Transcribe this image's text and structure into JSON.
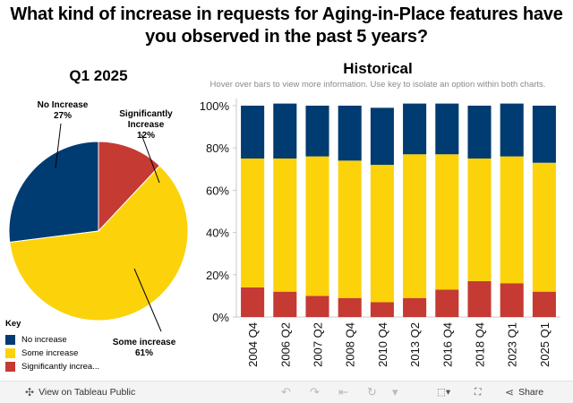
{
  "title": "What kind of increase in requests for Aging-in-Place features have you observed in the past 5 years?",
  "pie": {
    "title": "Q1 2025",
    "labels": {
      "no_increase": {
        "name": "No Increase",
        "pct": "27%"
      },
      "significantly": {
        "name": "Significantly Increase",
        "pct": "12%"
      },
      "some": {
        "name": "Some increase",
        "pct": "61%"
      }
    }
  },
  "historical": {
    "title": "Historical",
    "subtitle": "Hover over bars to view more information. Use key to isolate an option within both charts."
  },
  "key": {
    "title": "Key",
    "items": [
      "No increase",
      "Some increase",
      "Significantly increa..."
    ]
  },
  "colors": {
    "no_increase": "#003b71",
    "some": "#fcd20b",
    "significantly": "#c53a33"
  },
  "toolbar": {
    "view_label": "View on Tableau Public",
    "share_label": "Share",
    "view_icon": "tableau-logo-icon",
    "share_icon": "share-icon"
  },
  "chart_data": [
    {
      "type": "pie",
      "title": "Q1 2025",
      "categories": [
        "No Increase",
        "Significantly Increase",
        "Some increase"
      ],
      "values": [
        27,
        12,
        61
      ]
    },
    {
      "type": "bar",
      "stacked": true,
      "title": "Historical",
      "categories": [
        "2004 Q4",
        "2006 Q2",
        "2007 Q2",
        "2008 Q4",
        "2010 Q4",
        "2013 Q2",
        "2016 Q4",
        "2018 Q4",
        "2023 Q1",
        "2025 Q1"
      ],
      "series": [
        {
          "name": "Significantly increase",
          "values": [
            14,
            12,
            10,
            9,
            7,
            9,
            13,
            17,
            16,
            12
          ]
        },
        {
          "name": "Some increase",
          "values": [
            61,
            63,
            66,
            65,
            65,
            68,
            64,
            58,
            60,
            61
          ]
        },
        {
          "name": "No increase",
          "values": [
            25,
            26,
            24,
            26,
            27,
            24,
            24,
            25,
            25,
            27
          ]
        }
      ],
      "yticks": [
        "0%",
        "20%",
        "40%",
        "60%",
        "80%",
        "100%"
      ],
      "ylim": [
        0,
        100
      ]
    }
  ]
}
